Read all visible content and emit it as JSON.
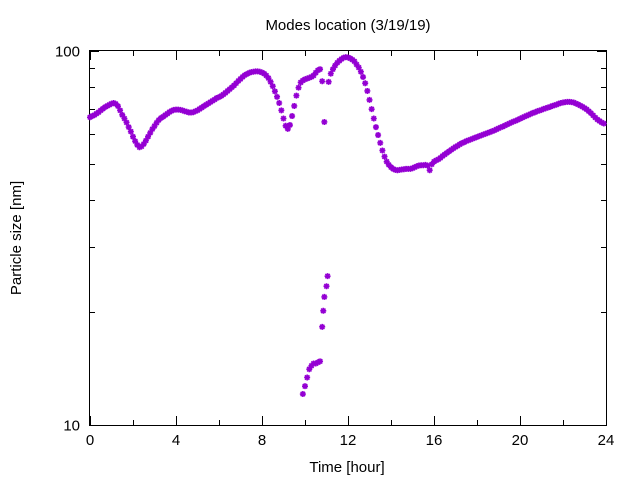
{
  "chart_data": {
    "type": "scatter",
    "title": "Modes location (3/19/19)",
    "xlabel": "Time [hour]",
    "ylabel": "Particle size [nm]",
    "xlim": [
      0,
      24
    ],
    "ylim": [
      10,
      100
    ],
    "yscale": "log",
    "grid": false,
    "marker_color": "#9400d3",
    "x_ticks": [
      0,
      4,
      8,
      12,
      16,
      20,
      24
    ],
    "x_tick_labels": [
      "0",
      "4",
      "8",
      "12",
      "16",
      "20",
      "24"
    ],
    "y_tick_labels": [
      "10",
      "100"
    ],
    "series": [
      {
        "points": [
          [
            0.0,
            66.5
          ],
          [
            0.1,
            67.0
          ],
          [
            0.2,
            67.4
          ],
          [
            0.3,
            68.0
          ],
          [
            0.4,
            68.6
          ],
          [
            0.5,
            69.4
          ],
          [
            0.6,
            70.1
          ],
          [
            0.7,
            70.8
          ],
          [
            0.8,
            71.3
          ],
          [
            0.9,
            71.8
          ],
          [
            1.0,
            72.3
          ],
          [
            1.1,
            72.6
          ],
          [
            1.2,
            72.2
          ],
          [
            1.3,
            71.2
          ],
          [
            1.4,
            69.4
          ],
          [
            1.5,
            67.5
          ],
          [
            1.6,
            66.0
          ],
          [
            1.7,
            64.4
          ],
          [
            1.8,
            62.6
          ],
          [
            1.9,
            60.9
          ],
          [
            2.0,
            59.0
          ],
          [
            2.1,
            57.4
          ],
          [
            2.2,
            56.1
          ],
          [
            2.3,
            55.3
          ],
          [
            2.4,
            55.6
          ],
          [
            2.5,
            56.4
          ],
          [
            2.6,
            57.6
          ],
          [
            2.7,
            59.0
          ],
          [
            2.8,
            60.4
          ],
          [
            2.9,
            61.8
          ],
          [
            3.0,
            63.0
          ],
          [
            3.1,
            64.3
          ],
          [
            3.2,
            65.4
          ],
          [
            3.3,
            66.2
          ],
          [
            3.4,
            66.7
          ],
          [
            3.5,
            67.4
          ],
          [
            3.6,
            68.0
          ],
          [
            3.7,
            68.7
          ],
          [
            3.8,
            69.2
          ],
          [
            3.9,
            69.6
          ],
          [
            4.0,
            69.7
          ],
          [
            4.1,
            69.7
          ],
          [
            4.2,
            69.6
          ],
          [
            4.3,
            69.4
          ],
          [
            4.4,
            69.0
          ],
          [
            4.5,
            68.8
          ],
          [
            4.6,
            68.5
          ],
          [
            4.7,
            68.5
          ],
          [
            4.8,
            68.6
          ],
          [
            4.9,
            69.0
          ],
          [
            5.0,
            69.4
          ],
          [
            5.1,
            70.0
          ],
          [
            5.2,
            70.6
          ],
          [
            5.3,
            71.2
          ],
          [
            5.4,
            71.8
          ],
          [
            5.5,
            72.4
          ],
          [
            5.6,
            73.0
          ],
          [
            5.7,
            73.6
          ],
          [
            5.8,
            74.2
          ],
          [
            5.9,
            74.9
          ],
          [
            6.0,
            75.3
          ],
          [
            6.1,
            75.8
          ],
          [
            6.2,
            76.5
          ],
          [
            6.3,
            77.3
          ],
          [
            6.4,
            78.2
          ],
          [
            6.5,
            79.1
          ],
          [
            6.6,
            80.0
          ],
          [
            6.7,
            80.9
          ],
          [
            6.8,
            82.0
          ],
          [
            6.9,
            83.2
          ],
          [
            7.0,
            84.2
          ],
          [
            7.1,
            85.3
          ],
          [
            7.2,
            86.2
          ],
          [
            7.3,
            86.8
          ],
          [
            7.4,
            87.4
          ],
          [
            7.5,
            87.8
          ],
          [
            7.6,
            88.0
          ],
          [
            7.7,
            88.2
          ],
          [
            7.8,
            88.2
          ],
          [
            7.9,
            88.0
          ],
          [
            8.0,
            87.6
          ],
          [
            8.1,
            87.0
          ],
          [
            8.2,
            86.0
          ],
          [
            8.3,
            84.6
          ],
          [
            8.4,
            82.7
          ],
          [
            8.5,
            80.5
          ],
          [
            8.6,
            78.0
          ],
          [
            8.7,
            75.4
          ],
          [
            8.8,
            72.6
          ],
          [
            8.9,
            69.4
          ],
          [
            9.0,
            66.0
          ],
          [
            9.1,
            63.1
          ],
          [
            9.2,
            61.9
          ],
          [
            9.3,
            63.4
          ],
          [
            9.4,
            67.0
          ],
          [
            9.5,
            71.3
          ],
          [
            9.6,
            76.0
          ],
          [
            9.7,
            79.8
          ],
          [
            9.8,
            82.4
          ],
          [
            9.9,
            83.4
          ],
          [
            10.0,
            84.0
          ],
          [
            10.1,
            84.4
          ],
          [
            10.2,
            84.8
          ],
          [
            10.3,
            85.3
          ],
          [
            10.4,
            86.0
          ],
          [
            10.5,
            87.5
          ],
          [
            10.6,
            88.8
          ],
          [
            10.7,
            89.4
          ],
          [
            10.8,
            83.0
          ],
          [
            10.9,
            64.6
          ],
          [
            9.9,
            12.1
          ],
          [
            10.0,
            12.7
          ],
          [
            10.1,
            13.4
          ],
          [
            10.2,
            14.1
          ],
          [
            10.3,
            14.4
          ],
          [
            10.4,
            14.6
          ],
          [
            10.5,
            14.6
          ],
          [
            10.6,
            14.7
          ],
          [
            10.7,
            14.8
          ],
          [
            10.8,
            18.3
          ],
          [
            10.85,
            20.2
          ],
          [
            10.9,
            22.0
          ],
          [
            11.0,
            23.5
          ],
          [
            11.05,
            25.0
          ],
          [
            11.1,
            82.7
          ],
          [
            11.2,
            87.0
          ],
          [
            11.3,
            89.4
          ],
          [
            11.4,
            91.4
          ],
          [
            11.5,
            93.0
          ],
          [
            11.6,
            94.2
          ],
          [
            11.7,
            95.2
          ],
          [
            11.8,
            96.0
          ],
          [
            11.9,
            96.3
          ],
          [
            12.0,
            96.1
          ],
          [
            12.1,
            95.6
          ],
          [
            12.2,
            94.8
          ],
          [
            12.3,
            93.8
          ],
          [
            12.4,
            92.0
          ],
          [
            12.5,
            90.3
          ],
          [
            12.6,
            88.0
          ],
          [
            12.7,
            85.2
          ],
          [
            12.8,
            82.0
          ],
          [
            12.9,
            78.2
          ],
          [
            13.0,
            74.0
          ],
          [
            13.1,
            69.9
          ],
          [
            13.2,
            66.0
          ],
          [
            13.3,
            62.6
          ],
          [
            13.4,
            59.6
          ],
          [
            13.5,
            56.8
          ],
          [
            13.6,
            54.2
          ],
          [
            13.7,
            52.2
          ],
          [
            13.8,
            50.6
          ],
          [
            13.9,
            49.6
          ],
          [
            14.0,
            48.9
          ],
          [
            14.1,
            48.4
          ],
          [
            14.2,
            48.1
          ],
          [
            14.3,
            48.0
          ],
          [
            14.4,
            48.1
          ],
          [
            14.5,
            48.2
          ],
          [
            14.6,
            48.3
          ],
          [
            14.7,
            48.4
          ],
          [
            14.8,
            48.4
          ],
          [
            14.9,
            48.4
          ],
          [
            15.0,
            48.6
          ],
          [
            15.1,
            48.9
          ],
          [
            15.2,
            49.2
          ],
          [
            15.3,
            49.4
          ],
          [
            15.4,
            49.5
          ],
          [
            15.5,
            49.5
          ],
          [
            15.6,
            49.6
          ],
          [
            15.7,
            49.4
          ],
          [
            15.8,
            48.0
          ],
          [
            15.9,
            49.8
          ],
          [
            16.0,
            50.6
          ],
          [
            16.1,
            51.0
          ],
          [
            16.2,
            51.3
          ],
          [
            16.3,
            51.8
          ],
          [
            16.4,
            52.4
          ],
          [
            16.5,
            52.9
          ],
          [
            16.6,
            53.4
          ],
          [
            16.7,
            53.9
          ],
          [
            16.8,
            54.4
          ],
          [
            16.9,
            54.9
          ],
          [
            17.0,
            55.4
          ],
          [
            17.1,
            55.8
          ],
          [
            17.2,
            56.3
          ],
          [
            17.3,
            56.7
          ],
          [
            17.4,
            57.0
          ],
          [
            17.5,
            57.4
          ],
          [
            17.6,
            57.7
          ],
          [
            17.7,
            58.0
          ],
          [
            17.8,
            58.3
          ],
          [
            17.9,
            58.6
          ],
          [
            18.0,
            58.9
          ],
          [
            18.1,
            59.2
          ],
          [
            18.2,
            59.5
          ],
          [
            18.3,
            59.8
          ],
          [
            18.4,
            60.1
          ],
          [
            18.5,
            60.4
          ],
          [
            18.6,
            60.7
          ],
          [
            18.7,
            61.0
          ],
          [
            18.8,
            61.3
          ],
          [
            18.9,
            61.7
          ],
          [
            19.0,
            62.1
          ],
          [
            19.1,
            62.5
          ],
          [
            19.2,
            62.8
          ],
          [
            19.3,
            63.2
          ],
          [
            19.4,
            63.6
          ],
          [
            19.5,
            64.0
          ],
          [
            19.6,
            64.4
          ],
          [
            19.7,
            64.8
          ],
          [
            19.8,
            65.1
          ],
          [
            19.9,
            65.5
          ],
          [
            20.0,
            65.9
          ],
          [
            20.1,
            66.3
          ],
          [
            20.2,
            66.7
          ],
          [
            20.3,
            67.1
          ],
          [
            20.4,
            67.5
          ],
          [
            20.5,
            67.9
          ],
          [
            20.6,
            68.3
          ],
          [
            20.7,
            68.6
          ],
          [
            20.8,
            69.0
          ],
          [
            20.9,
            69.3
          ],
          [
            21.0,
            69.6
          ],
          [
            21.1,
            70.0
          ],
          [
            21.2,
            70.3
          ],
          [
            21.3,
            70.6
          ],
          [
            21.4,
            70.9
          ],
          [
            21.5,
            71.3
          ],
          [
            21.6,
            71.6
          ],
          [
            21.7,
            71.9
          ],
          [
            21.8,
            72.3
          ],
          [
            21.9,
            72.6
          ],
          [
            22.0,
            72.8
          ],
          [
            22.1,
            73.0
          ],
          [
            22.2,
            73.1
          ],
          [
            22.3,
            73.1
          ],
          [
            22.4,
            73.0
          ],
          [
            22.5,
            72.8
          ],
          [
            22.6,
            72.4
          ],
          [
            22.7,
            72.0
          ],
          [
            22.8,
            71.5
          ],
          [
            22.9,
            71.0
          ],
          [
            23.0,
            70.4
          ],
          [
            23.1,
            69.8
          ],
          [
            23.2,
            69.0
          ],
          [
            23.3,
            68.2
          ],
          [
            23.4,
            67.3
          ],
          [
            23.5,
            66.4
          ],
          [
            23.6,
            65.6
          ],
          [
            23.7,
            65.0
          ],
          [
            23.8,
            64.4
          ],
          [
            23.9,
            64.0
          ]
        ]
      }
    ]
  }
}
